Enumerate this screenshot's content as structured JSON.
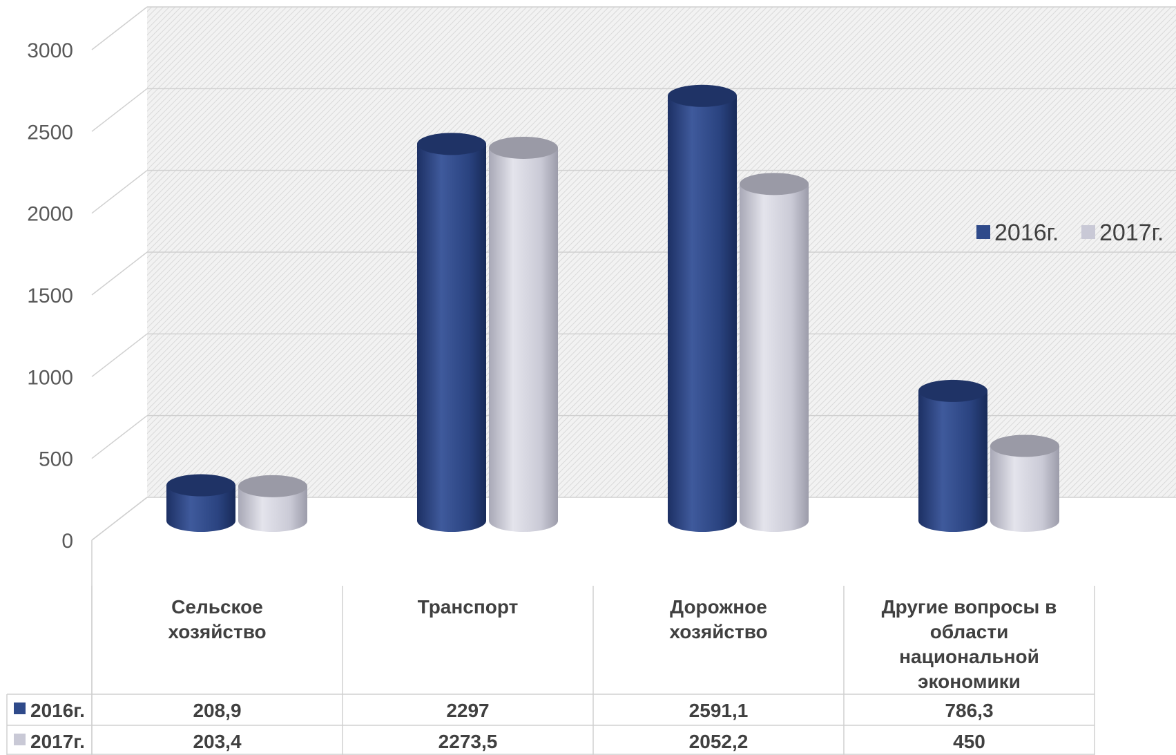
{
  "chart_data": {
    "type": "bar",
    "title": "",
    "xlabel": "",
    "ylabel": "",
    "ylim": [
      0,
      3000
    ],
    "yticks": [
      "0",
      "500",
      "1000",
      "1500",
      "2000",
      "2500",
      "3000"
    ],
    "categories": [
      [
        "Сельское",
        "хозяйство"
      ],
      [
        "Транспорт"
      ],
      [
        "Дорожное",
        "хозяйство"
      ],
      [
        "Другие вопросы в",
        "области",
        "национальной",
        "экономики"
      ]
    ],
    "series": [
      {
        "name": "2016г.",
        "color": "#2f4a8a",
        "values": [
          208.9,
          2297,
          2591.1,
          786.3
        ],
        "labels": [
          "208,9",
          "2297",
          "2591,1",
          "786,3"
        ]
      },
      {
        "name": "2017г.",
        "color": "#c9c9d6",
        "values": [
          203.4,
          2273.5,
          2052.2,
          450
        ],
        "labels": [
          "203,4",
          "2273,5",
          "2052,2",
          "450"
        ]
      }
    ],
    "legend_position": "right",
    "grid": true,
    "style": "3d-cylinder",
    "data_table": true
  }
}
